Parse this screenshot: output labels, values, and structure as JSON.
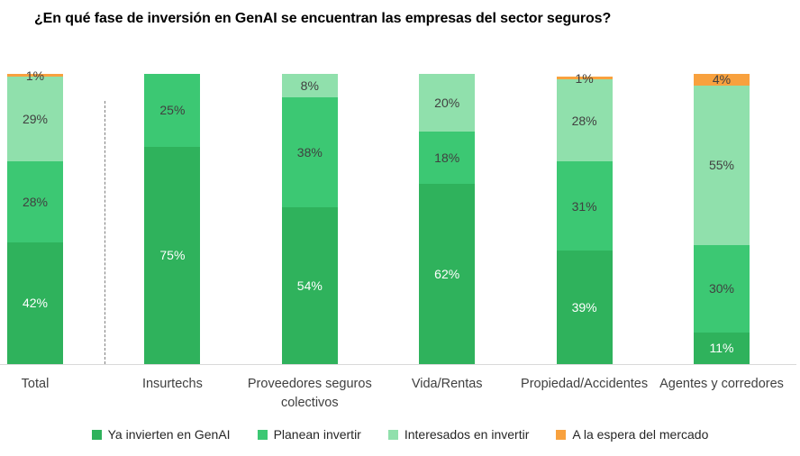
{
  "title": "¿En qué fase de inversión en GenAI se encuentran las empresas del sector seguros?",
  "chart_data": {
    "type": "bar",
    "stacked": true,
    "orientation": "vertical",
    "title": "¿En qué fase de inversión en GenAI se encuentran las empresas del sector seguros?",
    "categories": [
      "Total",
      "Insurtechs",
      "Proveedores seguros colectivos",
      "Vida/Rentas",
      "Propiedad/Accidentes",
      "Agentes y corredores"
    ],
    "series": [
      {
        "name": "Ya invierten en GenAI",
        "color": "#2FB25C",
        "label_color": "#ffffff",
        "values": [
          42,
          75,
          54,
          62,
          39,
          11
        ]
      },
      {
        "name": "Planean invertir",
        "color": "#3CC873",
        "label_color": "#404040",
        "values": [
          28,
          25,
          38,
          18,
          31,
          30
        ]
      },
      {
        "name": "Interesados en invertir",
        "color": "#90E0AC",
        "label_color": "#404040",
        "values": [
          29,
          0,
          8,
          20,
          28,
          55
        ]
      },
      {
        "name": "A la espera del mercado",
        "color": "#F8A13E",
        "label_color": "#404040",
        "values": [
          1,
          0,
          0,
          0,
          1,
          4
        ]
      }
    ],
    "value_suffix": "%",
    "ylim": [
      0,
      100
    ],
    "grid": false,
    "axis_labels_shown": false,
    "legend_position": "bottom",
    "separator_after_category_index": 0
  }
}
